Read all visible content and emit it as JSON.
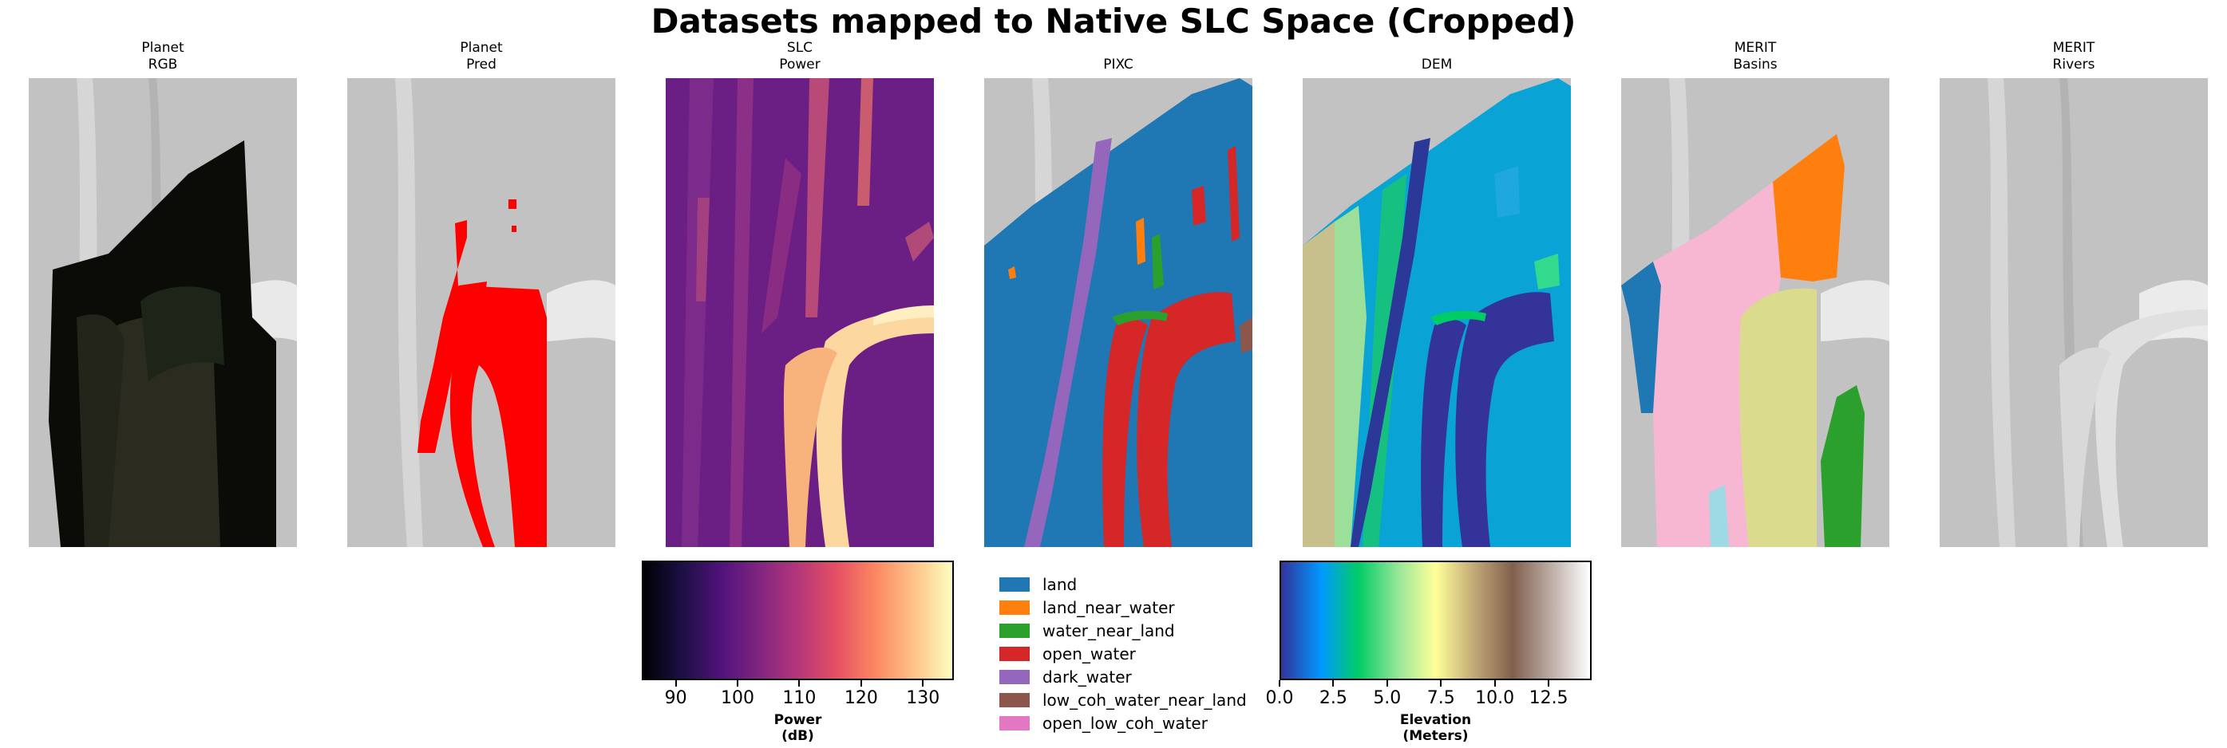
{
  "figure": {
    "title": "Datasets mapped to Native SLC Space (Cropped)",
    "panels": [
      {
        "id": "planet-rgb",
        "title": "Planet\nRGB"
      },
      {
        "id": "planet-pred",
        "title": "Planet\nPred"
      },
      {
        "id": "slc-power",
        "title": "SLC\nPower"
      },
      {
        "id": "pixc",
        "title": "PIXC"
      },
      {
        "id": "dem",
        "title": "DEM"
      },
      {
        "id": "merit-basins",
        "title": "MERIT\nBasins"
      },
      {
        "id": "merit-rivers",
        "title": "MERIT\nRivers"
      }
    ]
  },
  "power_colorbar": {
    "colormap": "magma",
    "ticks": [
      "90",
      "100",
      "110",
      "120",
      "130"
    ],
    "tick_values": [
      90,
      100,
      110,
      120,
      130
    ],
    "range": [
      84.5,
      135
    ],
    "label": "Power\n(dB)"
  },
  "pixc_legend": [
    {
      "label": "land",
      "color": "#1f77b4"
    },
    {
      "label": "land_near_water",
      "color": "#ff7f0e"
    },
    {
      "label": "water_near_land",
      "color": "#2ca02c"
    },
    {
      "label": "open_water",
      "color": "#d62728"
    },
    {
      "label": "dark_water",
      "color": "#9467bd"
    },
    {
      "label": "low_coh_water_near_land",
      "color": "#8c564b"
    },
    {
      "label": "open_low_coh_water",
      "color": "#e377c2"
    }
  ],
  "elevation_colorbar": {
    "colormap": "terrain",
    "ticks": [
      "0.0",
      "2.5",
      "5.0",
      "7.5",
      "10.0",
      "12.5"
    ],
    "tick_values": [
      0,
      2.5,
      5,
      7.5,
      10,
      12.5
    ],
    "range": [
      0,
      14.5
    ],
    "label": "Elevation\n(Meters)"
  },
  "basin_colors": [
    "#1f77b4",
    "#ff7f0e",
    "#2ca02c",
    "#f7b6d2",
    "#dbdb8d",
    "#9edae5"
  ]
}
